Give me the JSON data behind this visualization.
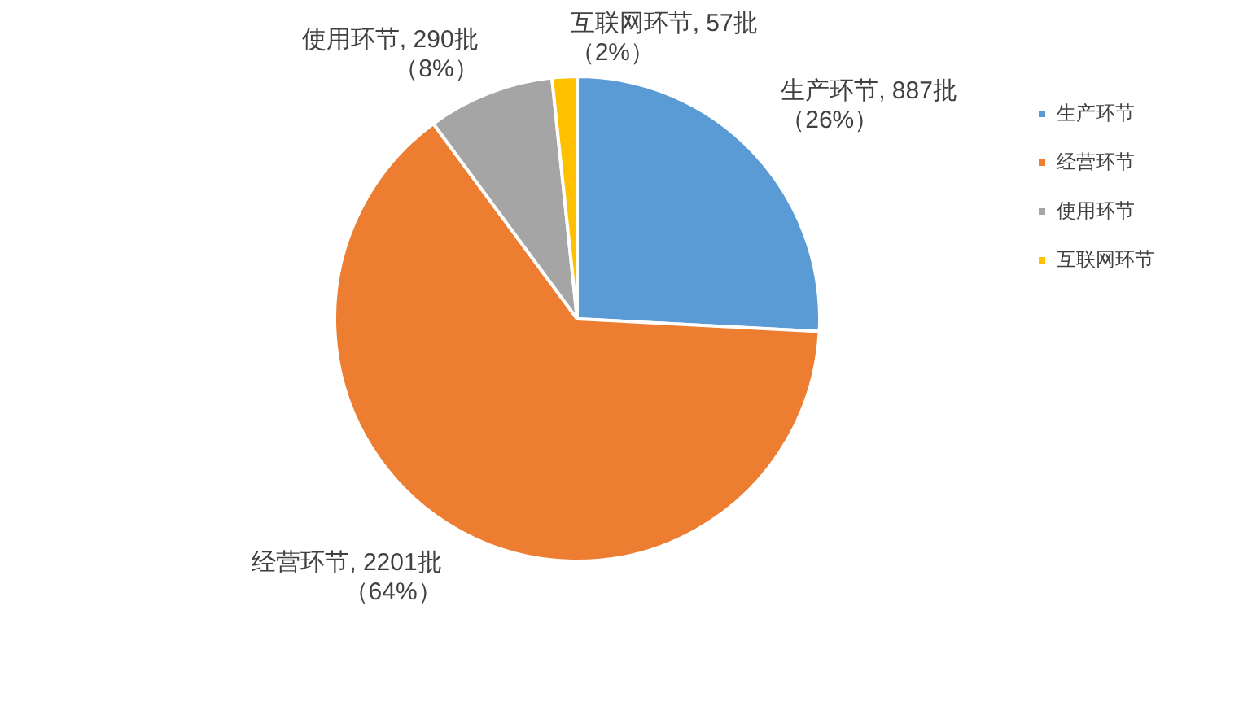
{
  "chart_data": {
    "type": "pie",
    "categories": [
      "生产环节",
      "经营环节",
      "使用环节",
      "互联网环节"
    ],
    "values": [
      887,
      2201,
      290,
      57
    ],
    "value_labels": [
      "生产环节, 887批（26%）",
      "经营环节, 2201批（64%）",
      "使用环节, 290批（8%）",
      "互联网环节, 57批（2%）"
    ],
    "colors": [
      "#5b9bd5",
      "#ed7d31",
      "#a5a5a5",
      "#ffc000"
    ],
    "legend": "top right"
  }
}
